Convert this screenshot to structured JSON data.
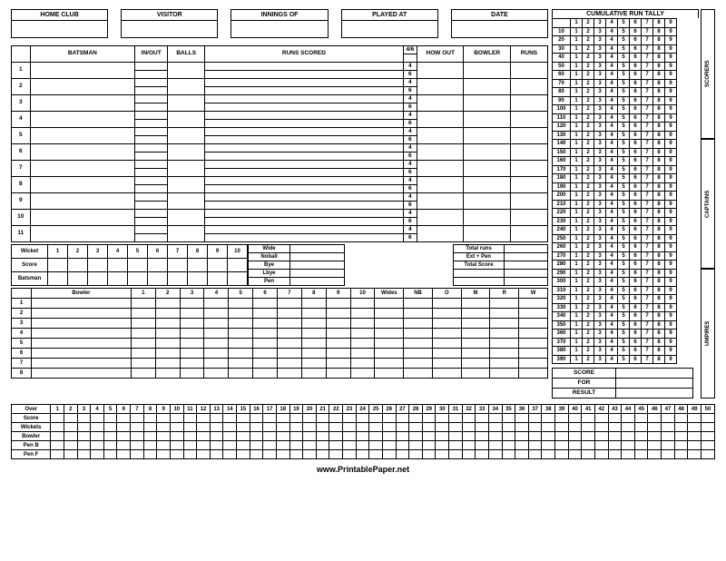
{
  "header": {
    "boxes": [
      "HOME CLUB",
      "VISITOR",
      "INNINGS OF",
      "PLAYED AT",
      "DATE"
    ]
  },
  "batsman": {
    "cols": [
      "BATSMAN",
      "IN/OUT",
      "BALLS",
      "RUNS SCORED",
      "4/6",
      "HOW OUT",
      "BOWLER",
      "RUNS"
    ],
    "count": 11,
    "sub46": [
      "4",
      "6"
    ]
  },
  "wicket": {
    "rows": [
      "Wicket",
      "Score",
      "Batsman"
    ],
    "nums": [
      1,
      2,
      3,
      4,
      5,
      6,
      7,
      8,
      9,
      10
    ],
    "extras": [
      "Wide",
      "Noball",
      "Bye",
      "Lbye",
      "Pen"
    ],
    "totals": [
      "Total runs",
      "Ext + Pen",
      "Total Score"
    ]
  },
  "bowler": {
    "label": "Bowler",
    "count": 8,
    "overs": [
      1,
      2,
      3,
      4,
      5,
      6,
      7,
      8,
      9,
      10
    ],
    "stats": [
      "Wides",
      "NB",
      "O",
      "M",
      "R",
      "W"
    ]
  },
  "tally": {
    "title": "CUMULATIVE RUN TALLY",
    "cols": [
      1,
      2,
      3,
      4,
      5,
      6,
      7,
      8,
      9
    ],
    "rows": [
      10,
      20,
      30,
      40,
      50,
      60,
      70,
      80,
      90,
      100,
      110,
      120,
      130,
      140,
      150,
      160,
      170,
      180,
      190,
      200,
      210,
      220,
      230,
      240,
      250,
      260,
      270,
      280,
      290,
      300,
      310,
      320,
      330,
      340,
      350,
      360,
      370,
      380,
      390
    ]
  },
  "side": [
    "SCORERS",
    "CAPTAINS",
    "UMPIRES"
  ],
  "scorebox": {
    "rows": [
      "SCORE",
      "FOR",
      "RESULT"
    ]
  },
  "overs": {
    "rows": [
      "Over",
      "Score",
      "Wickets",
      "Bowler",
      "Pen B",
      "Pen F"
    ],
    "count": 50
  },
  "footer": "www.PrintablePaper.net",
  "colors": {
    "border": "#000000",
    "bg": "#ffffff"
  }
}
